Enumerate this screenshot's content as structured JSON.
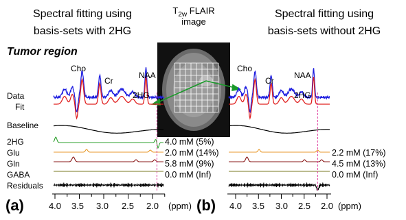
{
  "figure": {
    "region": "Tumor region",
    "image_title": {
      "main": "T",
      "subscript": "2w",
      "rest": " FLAIR",
      "line2": "image"
    },
    "row_labels": {
      "data": "Data",
      "fit": "Fit",
      "baseline": "Baseline",
      "hg": "2HG",
      "glu": "Glu",
      "gln": "Gln",
      "gaba": "GABA",
      "residuals": "Residuals"
    },
    "panels": [
      {
        "title_line1": "Spectral fitting using",
        "title_line2": "basis-sets with 2HG",
        "label": "(a)",
        "peak_labels": {
          "cho": "Cho",
          "cr": "Cr",
          "naa": "NAA",
          "hg": "2HG"
        },
        "concentrations": [
          "4.0 mM (5%)",
          "2.0 mM (14%)",
          "5.8 mM (9%)",
          "0.0 mM (Inf)"
        ],
        "ticks": [
          "4.0",
          "3.5",
          "3.0",
          "2.5",
          "2.0"
        ],
        "unit": "(ppm)"
      },
      {
        "title_line1": "Spectral fitting using",
        "title_line2": "basis-sets without 2HG",
        "label": "(b)",
        "peak_labels": {
          "cho": "Cho",
          "cr": "Cr",
          "naa": "NAA",
          "hg": "2HG"
        },
        "concentrations": [
          "2.2 mM (17%)",
          "4.5 mM (13%)",
          "0.0 mM (Inf)"
        ],
        "ticks": [
          "4.0",
          "3.5",
          "3.0",
          "2.5",
          "2.0"
        ],
        "unit": "(ppm)"
      }
    ]
  }
}
